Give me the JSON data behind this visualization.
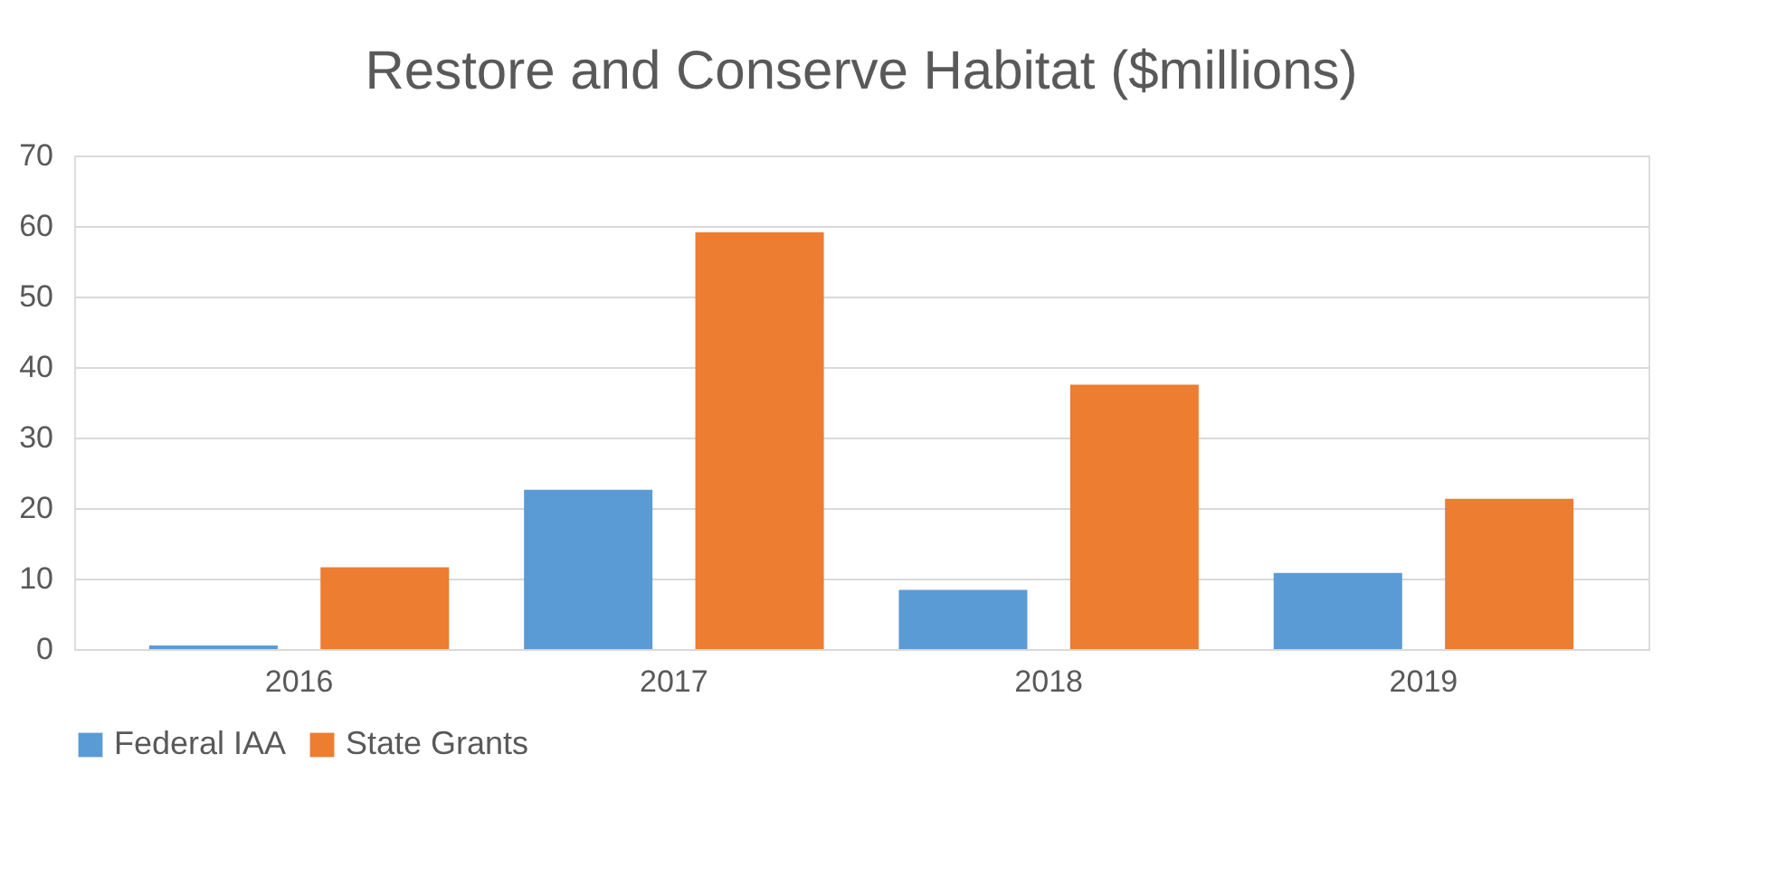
{
  "chart_data": {
    "type": "bar",
    "title": "Restore and Conserve Habitat ($millions)",
    "categories": [
      "2016",
      "2017",
      "2018",
      "2019"
    ],
    "series": [
      {
        "name": "Federal IAA",
        "color": "#5b9bd5",
        "values": [
          0.5,
          22.6,
          8.4,
          10.8
        ]
      },
      {
        "name": "State Grants",
        "color": "#ed7d31",
        "values": [
          11.6,
          59.1,
          37.5,
          21.3
        ]
      }
    ],
    "ylim": [
      0,
      70
    ],
    "yticks": [
      0,
      10,
      20,
      30,
      40,
      50,
      60,
      70
    ],
    "grid": "y",
    "legend": "bottom"
  }
}
